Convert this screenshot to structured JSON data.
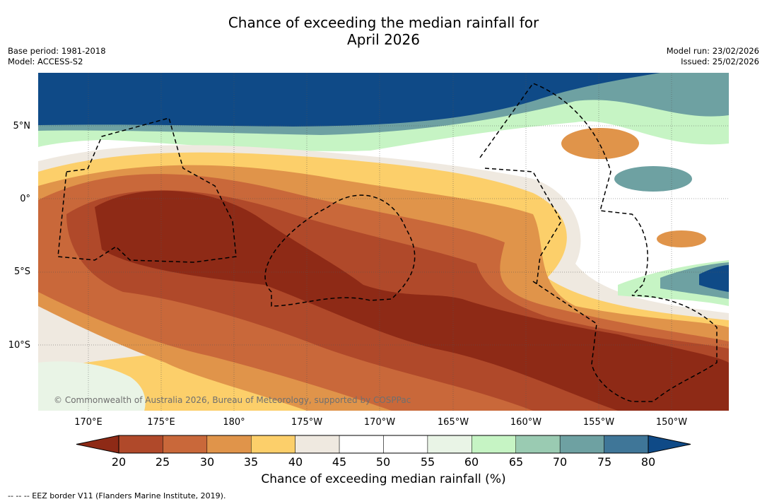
{
  "title": {
    "line1": "Chance of exceeding the median rainfall for",
    "line2": "April 2026"
  },
  "meta": {
    "base_period": "Base period: 1981-2018",
    "model": "Model: ACCESS-S2",
    "model_run": "Model run: 23/02/2026",
    "issued": "Issued: 25/02/2026"
  },
  "map": {
    "latitude_labels": [
      "5°N",
      "0°",
      "5°S",
      "10°S"
    ],
    "longitude_labels": [
      "170°E",
      "175°E",
      "180°",
      "175°W",
      "170°W",
      "165°W",
      "160°W",
      "155°W",
      "150°W"
    ],
    "copyright": "© Commonwealth of Australia 2026, Bureau of Meteorology, supported by COSPPac"
  },
  "colorbar": {
    "ticks": [
      "20",
      "25",
      "30",
      "35",
      "40",
      "45",
      "50",
      "55",
      "60",
      "65",
      "70",
      "75",
      "80"
    ],
    "colors": [
      "#8e2a16",
      "#b0492a",
      "#c9683a",
      "#e0944a",
      "#fccf6a",
      "#efe9e0",
      "#ffffff",
      "#ffffff",
      "#e9f4e6",
      "#c6f4c4",
      "#9acbb2",
      "#6ea1a2",
      "#3f7698",
      "#0f4a87"
    ],
    "label": "Chance of exceeding median rainfall (%)"
  },
  "footer": {
    "legend": "--  --  -- EEZ border V11 (Flanders Marine Institute, 2019)."
  }
}
